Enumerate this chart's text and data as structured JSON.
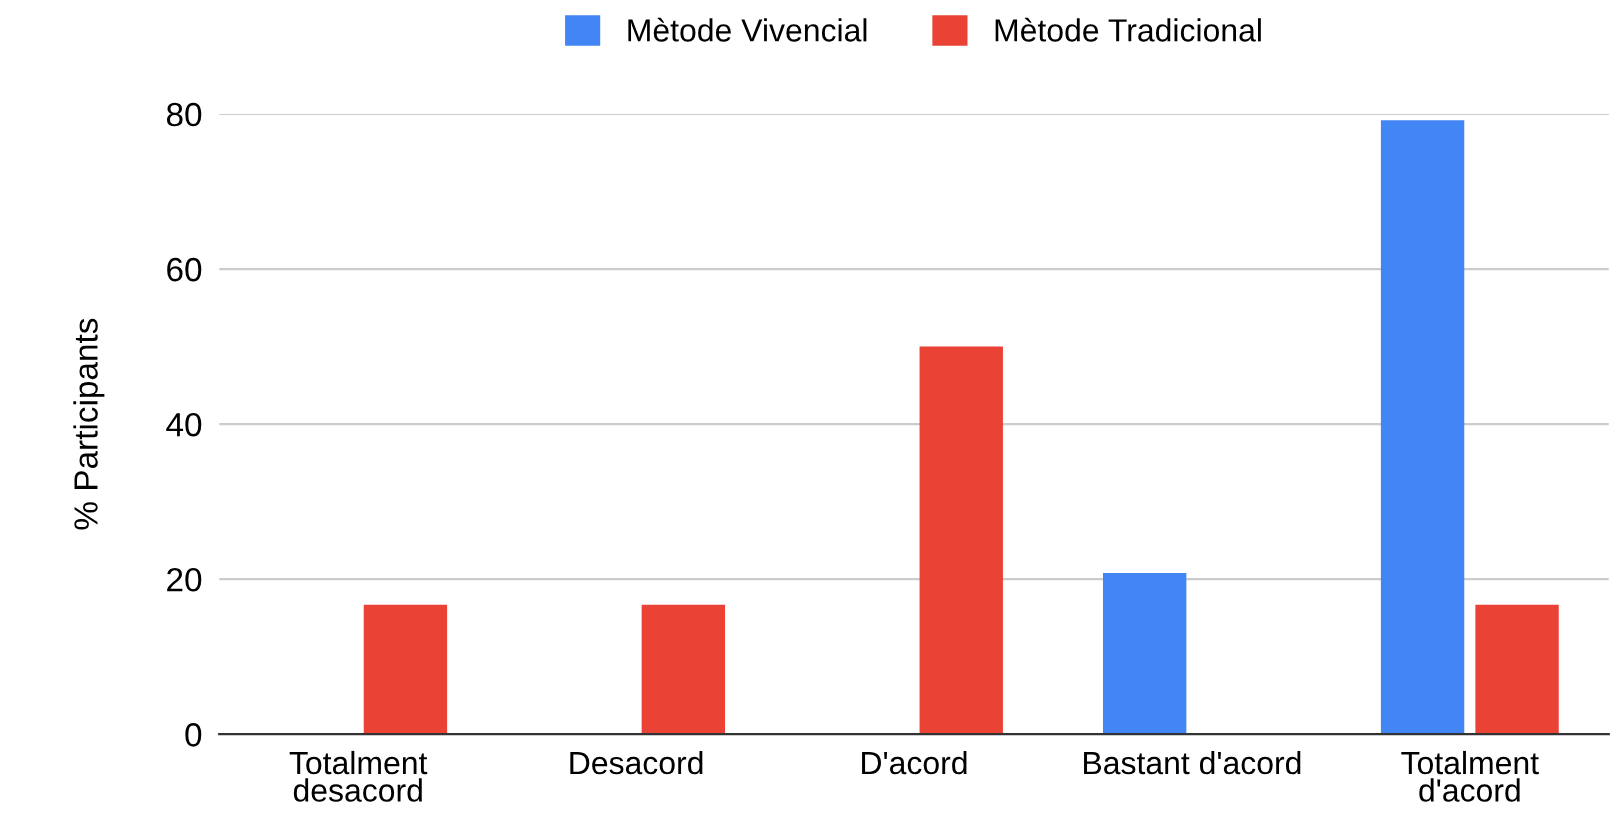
{
  "chart_data": {
    "type": "bar",
    "categories": [
      "Totalment\ndesacord",
      "Desacord",
      "D'acord",
      "Bastant d'acord",
      "Totalment\nd'acord"
    ],
    "series": [
      {
        "name": "Mètode Vivencial",
        "color": "#4285f4",
        "values": [
          0,
          0,
          0,
          20.8,
          79.2
        ]
      },
      {
        "name": "Mètode Tradicional",
        "color": "#ea4335",
        "values": [
          16.7,
          16.7,
          50,
          0,
          16.7
        ]
      }
    ],
    "ylabel": "% Participants",
    "ylim": [
      0,
      80
    ],
    "yticks": [
      0,
      20,
      40,
      60,
      80
    ],
    "grid": "y",
    "legend": "top"
  }
}
